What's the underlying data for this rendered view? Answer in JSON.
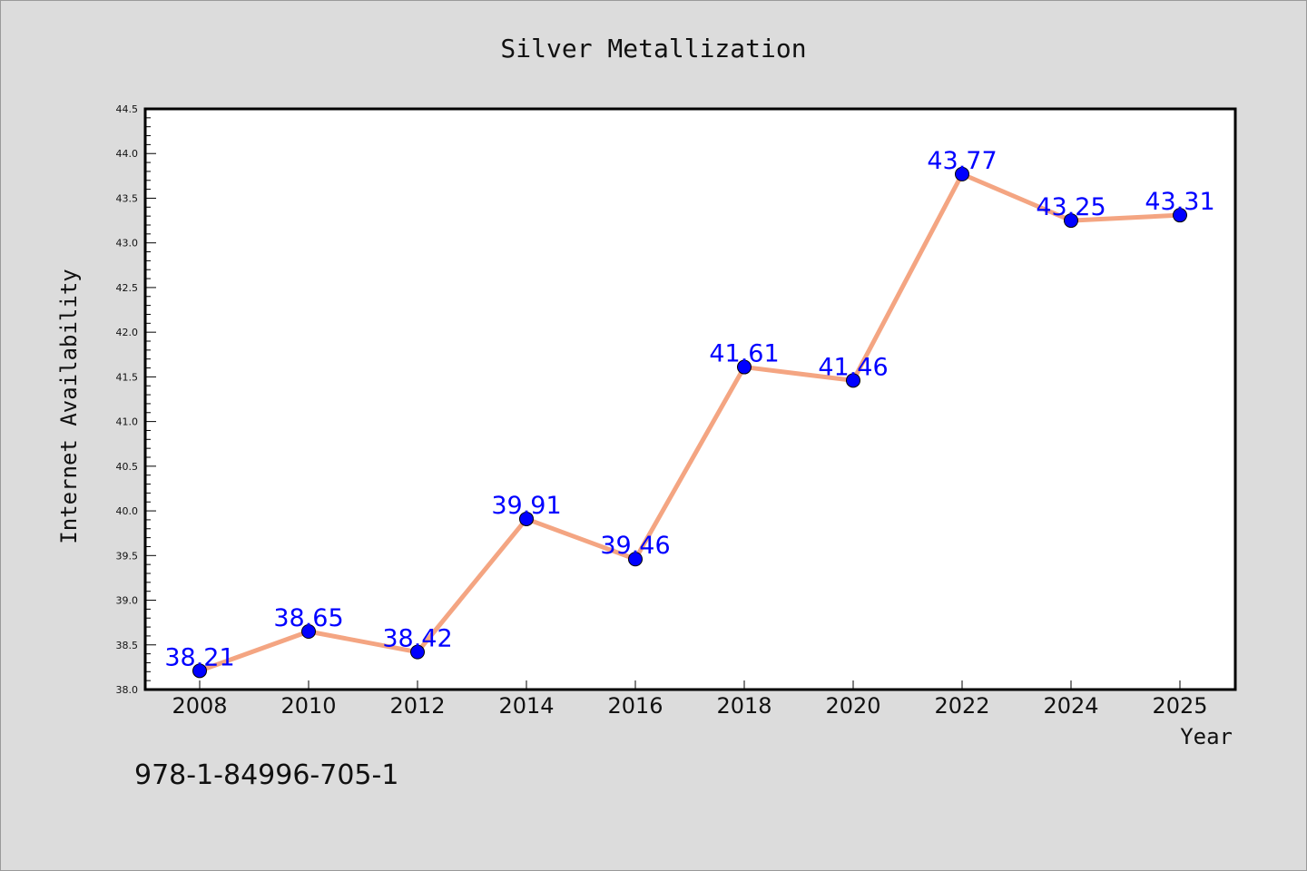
{
  "chart_data": {
    "type": "line",
    "title": "Silver Metallization",
    "xlabel": "Year",
    "ylabel": "Internet Availability",
    "categories": [
      "2008",
      "2010",
      "2012",
      "2014",
      "2016",
      "2018",
      "2020",
      "2022",
      "2024",
      "2025"
    ],
    "series": [
      {
        "values": [
          38.21,
          38.65,
          38.42,
          39.91,
          39.46,
          41.61,
          41.46,
          43.77,
          43.25,
          43.31
        ]
      }
    ],
    "data_labels": [
      "38.21",
      "38.65",
      "38.42",
      "39.91",
      "39.46",
      "41.61",
      "41.46",
      "43.77",
      "43.25",
      "43.31"
    ],
    "ylim": [
      38.0,
      44.5
    ],
    "yticks": [
      "38.0",
      "38.5",
      "39.0",
      "39.5",
      "40.0",
      "40.5",
      "41.0",
      "41.5",
      "42.0",
      "42.5",
      "43.0",
      "43.5",
      "44.0",
      "44.5"
    ],
    "grid": false,
    "legend": "none",
    "colors": {
      "line": "#f4a582",
      "marker": "#0000ff",
      "label": "#0000ff",
      "background": "#dcdcdc",
      "plot_background": "#ffffff"
    }
  },
  "footer_text": "978-1-84996-705-1"
}
